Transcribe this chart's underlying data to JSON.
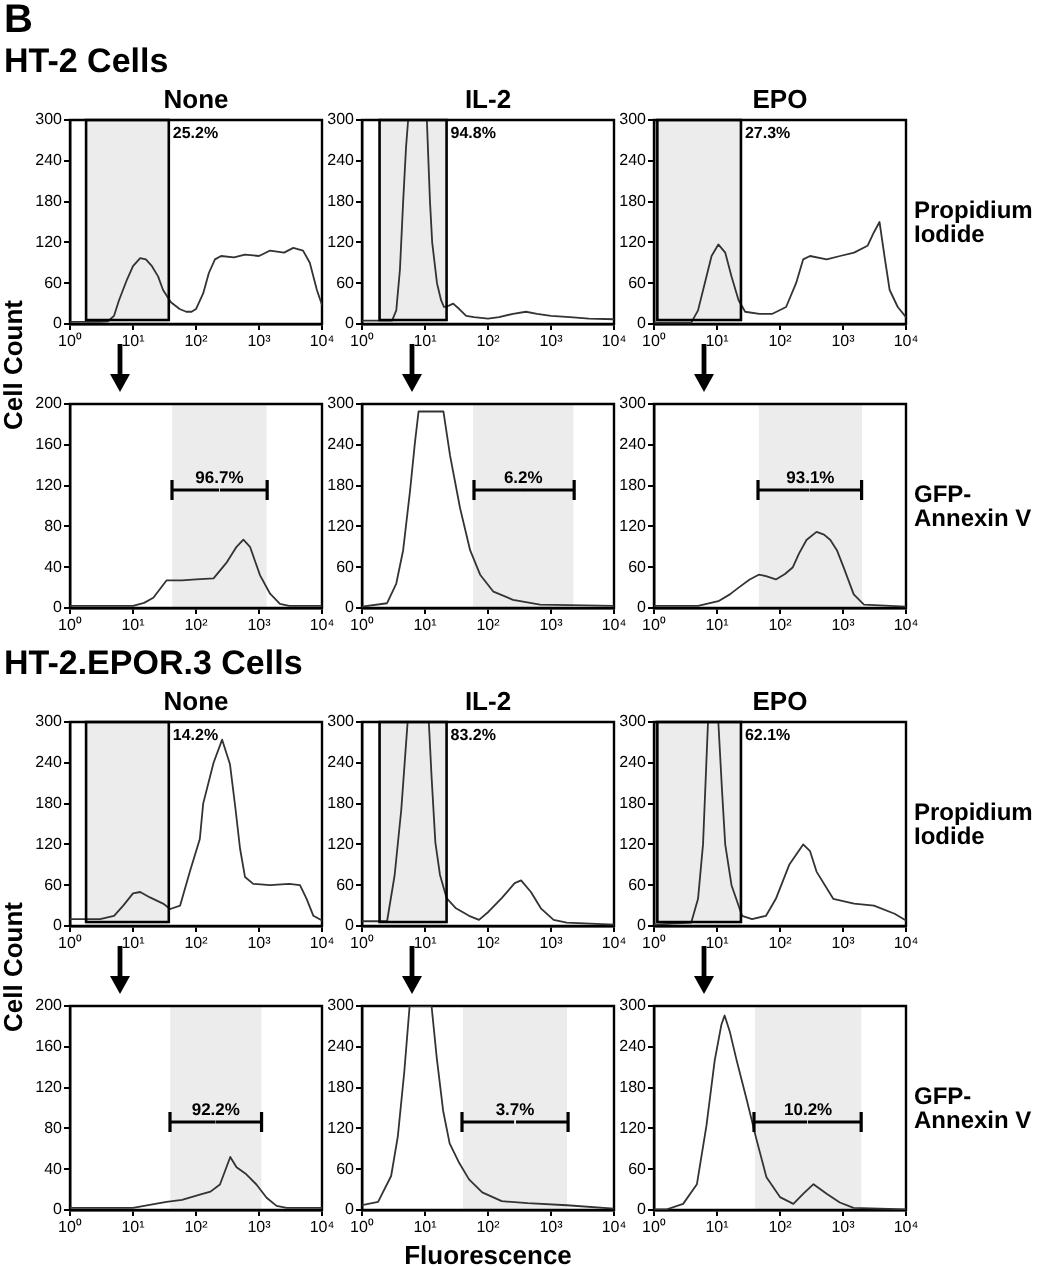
{
  "chart_data": [
    {
      "type": "line",
      "title": "None",
      "annotations": [
        "B",
        "HT-2 Cells"
      ],
      "log": "x",
      "xlim": [
        1,
        10000
      ],
      "xticks": [
        {
          "value": 1,
          "label": "10⁰"
        },
        {
          "value": 10,
          "label": "10¹"
        },
        {
          "value": 100,
          "label": "10²"
        },
        {
          "value": 1000,
          "label": "10³"
        },
        {
          "value": 10000,
          "label": "10⁴"
        }
      ],
      "ylim": [
        0,
        300
      ],
      "yticks": [
        0,
        60,
        120,
        180,
        240,
        300
      ],
      "bands": [
        {
          "axis": "x",
          "from": 1.8,
          "to": 37,
          "label": "25.2%",
          "color": "#ececec"
        }
      ],
      "x": [
        1,
        2,
        3,
        4,
        5,
        6,
        8,
        10,
        13,
        16,
        20,
        25,
        30,
        40,
        55,
        70,
        85,
        100,
        130,
        160,
        200,
        250,
        400,
        600,
        1000,
        1500,
        2500,
        3500,
        5000,
        6400,
        8300,
        10000
      ],
      "series": [
        {
          "color": "#333333",
          "values": [
            3,
            3,
            3,
            4,
            12,
            35,
            65,
            85,
            97,
            95,
            85,
            70,
            50,
            32,
            22,
            18,
            18,
            22,
            45,
            75,
            95,
            100,
            98,
            102,
            100,
            108,
            105,
            112,
            108,
            90,
            50,
            28
          ]
        }
      ]
    },
    {
      "type": "line",
      "title": "IL-2",
      "log": "x",
      "xlim": [
        1,
        10000
      ],
      "xticks": [
        {
          "value": 1,
          "label": "10⁰"
        },
        {
          "value": 10,
          "label": "10¹"
        },
        {
          "value": 100,
          "label": "10²"
        },
        {
          "value": 1000,
          "label": "10³"
        },
        {
          "value": 10000,
          "label": "10⁴"
        }
      ],
      "ylim": [
        0,
        300
      ],
      "yticks": [
        0,
        60,
        120,
        180,
        240,
        300
      ],
      "bands": [
        {
          "axis": "x",
          "from": 1.9,
          "to": 22,
          "label": "94.8%",
          "color": "#ececec"
        }
      ],
      "x": [
        1,
        2,
        3,
        3.5,
        4,
        4.5,
        5,
        5.4,
        7,
        10.7,
        12,
        13,
        15.5,
        18,
        20,
        24,
        28,
        35,
        45,
        60,
        100,
        150,
        250,
        400,
        600,
        1000,
        2000,
        4000,
        10000
      ],
      "series": [
        {
          "color": "#333333",
          "values": [
            5,
            5,
            5,
            20,
            80,
            180,
            260,
            300,
            300,
            300,
            180,
            120,
            60,
            35,
            25,
            27,
            30,
            22,
            12,
            10,
            8,
            10,
            15,
            18,
            15,
            12,
            10,
            8,
            7
          ]
        }
      ]
    },
    {
      "type": "line",
      "title": "EPO",
      "annotations": [
        "Propidium Iodide"
      ],
      "log": "x",
      "xlim": [
        1,
        10000
      ],
      "xticks": [
        {
          "value": 1,
          "label": "10⁰"
        },
        {
          "value": 10,
          "label": "10¹"
        },
        {
          "value": 100,
          "label": "10²"
        },
        {
          "value": 1000,
          "label": "10³"
        },
        {
          "value": 10000,
          "label": "10⁴"
        }
      ],
      "ylim": [
        0,
        300
      ],
      "yticks": [
        0,
        60,
        120,
        180,
        240,
        300
      ],
      "bands": [
        {
          "axis": "x",
          "from": 1.13,
          "to": 24,
          "label": "27.3%",
          "color": "#ececec"
        }
      ],
      "x": [
        1,
        2,
        3.9,
        5,
        6.4,
        8.2,
        10.5,
        13.5,
        17,
        22,
        28,
        47,
        76,
        125,
        180,
        233,
        300,
        550,
        900,
        1500,
        2450,
        3100,
        3800,
        4550,
        5500,
        7400,
        10000
      ],
      "series": [
        {
          "color": "#333333",
          "values": [
            2,
            2,
            2,
            20,
            60,
            100,
            117,
            105,
            70,
            35,
            18,
            15,
            15,
            25,
            60,
            95,
            100,
            95,
            100,
            105,
            115,
            135,
            150,
            100,
            50,
            25,
            10
          ]
        }
      ]
    },
    {
      "type": "line",
      "ylabel": "Cell Count",
      "log": "x",
      "xlim": [
        1,
        10000
      ],
      "xticks": [
        {
          "value": 1,
          "label": "10⁰"
        },
        {
          "value": 10,
          "label": "10¹"
        },
        {
          "value": 100,
          "label": "10²"
        },
        {
          "value": 1000,
          "label": "10³"
        },
        {
          "value": 10000,
          "label": "10⁴"
        }
      ],
      "ylim": [
        0,
        200
      ],
      "yticks": [
        0,
        40,
        80,
        120,
        160,
        200
      ],
      "bands": [
        {
          "axis": "x",
          "from": 42,
          "to": 1320,
          "label": "96.7%",
          "color": "#ececec"
        }
      ],
      "x": [
        1,
        3,
        10,
        15,
        21,
        34,
        60,
        100,
        190,
        310,
        440,
        565,
        720,
        1040,
        1500,
        2150,
        3000,
        10000
      ],
      "series": [
        {
          "color": "#333333",
          "values": [
            2,
            2,
            2,
            5,
            10,
            27,
            27,
            28,
            29,
            45,
            60,
            67,
            60,
            32,
            14,
            4,
            2,
            2
          ]
        }
      ]
    },
    {
      "type": "line",
      "log": "x",
      "xlim": [
        1,
        10000
      ],
      "xticks": [
        {
          "value": 1,
          "label": "10⁰"
        },
        {
          "value": 10,
          "label": "10¹"
        },
        {
          "value": 100,
          "label": "10²"
        },
        {
          "value": 1000,
          "label": "10³"
        },
        {
          "value": 10000,
          "label": "10⁴"
        }
      ],
      "ylim": [
        0,
        300
      ],
      "yticks": [
        0,
        60,
        120,
        180,
        240,
        300
      ],
      "bands": [
        {
          "axis": "x",
          "from": 58,
          "to": 2270,
          "label": "6.2%",
          "color": "#ececec"
        }
      ],
      "x": [
        1,
        2.5,
        3.5,
        4.5,
        5.8,
        6.9,
        7.9,
        19.6,
        25,
        36,
        52,
        75,
        122,
        250,
        670,
        10000
      ],
      "series": [
        {
          "color": "#333333",
          "values": [
            2,
            7,
            36,
            85,
            173,
            242,
            289,
            289,
            224,
            147,
            85,
            49,
            24,
            12,
            5,
            3
          ]
        }
      ]
    },
    {
      "type": "line",
      "annotations": [
        "GFP- Annexin V"
      ],
      "log": "x",
      "xlim": [
        1,
        10000
      ],
      "xticks": [
        {
          "value": 1,
          "label": "10⁰"
        },
        {
          "value": 10,
          "label": "10¹"
        },
        {
          "value": 100,
          "label": "10²"
        },
        {
          "value": 1000,
          "label": "10³"
        },
        {
          "value": 10000,
          "label": "10⁴"
        }
      ],
      "ylim": [
        0,
        300
      ],
      "yticks": [
        0,
        60,
        120,
        180,
        240,
        300
      ],
      "bands": [
        {
          "axis": "x",
          "from": 46,
          "to": 2000,
          "label": "93.1%",
          "color": "#ececec"
        }
      ],
      "x": [
        1,
        5,
        10.5,
        16,
        22,
        33,
        46,
        60,
        86,
        120,
        160,
        200,
        263,
        380,
        500,
        630,
        800,
        1020,
        1480,
        2150,
        10000
      ],
      "series": [
        {
          "color": "#333333",
          "values": [
            3,
            3,
            10,
            20,
            30,
            42,
            49,
            47,
            42,
            50,
            60,
            80,
            100,
            112,
            108,
            100,
            85,
            60,
            20,
            5,
            2
          ]
        }
      ]
    },
    {
      "type": "line",
      "title": "None",
      "annotations": [
        "HT-2.EPOR.3 Cells"
      ],
      "log": "x",
      "xlim": [
        1,
        10000
      ],
      "xticks": [
        {
          "value": 1,
          "label": "10⁰"
        },
        {
          "value": 10,
          "label": "10¹"
        },
        {
          "value": 100,
          "label": "10²"
        },
        {
          "value": 1000,
          "label": "10³"
        },
        {
          "value": 10000,
          "label": "10⁴"
        }
      ],
      "ylim": [
        0,
        300
      ],
      "yticks": [
        0,
        60,
        120,
        180,
        240,
        300
      ],
      "bands": [
        {
          "axis": "x",
          "from": 1.8,
          "to": 37,
          "label": "14.2%",
          "color": "#ececec"
        }
      ],
      "x": [
        1,
        3,
        5,
        7,
        10,
        13,
        18.6,
        30,
        39,
        56,
        80,
        115,
        130,
        190,
        260,
        346,
        420,
        500,
        600,
        810,
        1500,
        3000,
        4470,
        5700,
        7300,
        10000
      ],
      "series": [
        {
          "color": "#333333",
          "values": [
            10,
            10,
            15,
            30,
            48,
            50,
            42,
            33,
            25,
            30,
            80,
            128,
            180,
            240,
            274,
            238,
            175,
            114,
            72,
            62,
            60,
            62,
            60,
            40,
            15,
            8
          ]
        }
      ]
    },
    {
      "type": "line",
      "title": "IL-2",
      "log": "x",
      "xlim": [
        1,
        10000
      ],
      "xticks": [
        {
          "value": 1,
          "label": "10⁰"
        },
        {
          "value": 10,
          "label": "10¹"
        },
        {
          "value": 100,
          "label": "10²"
        },
        {
          "value": 1000,
          "label": "10³"
        },
        {
          "value": 10000,
          "label": "10⁴"
        }
      ],
      "ylim": [
        0,
        300
      ],
      "yticks": [
        0,
        60,
        120,
        180,
        240,
        300
      ],
      "bands": [
        {
          "axis": "x",
          "from": 1.9,
          "to": 22,
          "label": "83.2%",
          "color": "#ececec"
        }
      ],
      "x": [
        1,
        2.5,
        3.3,
        4.2,
        5.3,
        11.5,
        12.7,
        14.6,
        17.3,
        22,
        31,
        50,
        72,
        102,
        165,
        265,
        335,
        480,
        690,
        1100,
        1780,
        10000
      ],
      "series": [
        {
          "color": "#333333",
          "values": [
            7,
            7,
            75,
            171,
            300,
            300,
            220,
            123,
            75,
            41,
            26,
            15,
            9,
            21,
            41,
            63,
            67,
            50,
            26,
            9,
            5,
            2
          ]
        }
      ]
    },
    {
      "type": "line",
      "title": "EPO",
      "annotations": [
        "Propidium Iodide"
      ],
      "log": "x",
      "xlim": [
        1,
        10000
      ],
      "xticks": [
        {
          "value": 1,
          "label": "10⁰"
        },
        {
          "value": 10,
          "label": "10¹"
        },
        {
          "value": 100,
          "label": "10²"
        },
        {
          "value": 1000,
          "label": "10³"
        },
        {
          "value": 10000,
          "label": "10⁴"
        }
      ],
      "ylim": [
        0,
        300
      ],
      "yticks": [
        0,
        60,
        120,
        180,
        240,
        300
      ],
      "bands": [
        {
          "axis": "x",
          "from": 1.13,
          "to": 24,
          "label": "62.1%",
          "color": "#ececec"
        }
      ],
      "x": [
        1,
        3.9,
        5,
        6,
        7.2,
        10.5,
        12,
        13.5,
        17,
        25,
        36,
        60,
        86,
        140,
        233,
        300,
        380,
        700,
        1500,
        3100,
        6600,
        10000
      ],
      "series": [
        {
          "color": "#333333",
          "values": [
            2,
            5,
            40,
            120,
            300,
            300,
            200,
            120,
            60,
            15,
            10,
            15,
            40,
            90,
            120,
            110,
            80,
            40,
            33,
            30,
            18,
            8
          ]
        }
      ]
    },
    {
      "type": "line",
      "ylabel": "Cell Count",
      "log": "x",
      "xlim": [
        1,
        10000
      ],
      "xticks": [
        {
          "value": 1,
          "label": "10⁰"
        },
        {
          "value": 10,
          "label": "10¹"
        },
        {
          "value": 100,
          "label": "10²"
        },
        {
          "value": 1000,
          "label": "10³"
        },
        {
          "value": 10000,
          "label": "10⁴"
        }
      ],
      "ylim": [
        0,
        200
      ],
      "yticks": [
        0,
        40,
        80,
        120,
        160,
        200
      ],
      "bands": [
        {
          "axis": "x",
          "from": 39,
          "to": 1090,
          "label": "92.2%",
          "color": "#ececec"
        }
      ],
      "x": [
        1,
        10,
        34,
        60,
        115,
        170,
        240,
        350,
        440,
        630,
        910,
        1320,
        1900,
        2750,
        10000
      ],
      "series": [
        {
          "color": "#333333",
          "values": [
            2,
            2,
            8,
            10,
            15,
            18,
            25,
            52,
            42,
            35,
            25,
            12,
            4,
            2,
            2
          ]
        }
      ]
    },
    {
      "type": "line",
      "xlabel": "Fluorescence",
      "log": "x",
      "xlim": [
        1,
        10000
      ],
      "xticks": [
        {
          "value": 1,
          "label": "10⁰"
        },
        {
          "value": 10,
          "label": "10¹"
        },
        {
          "value": 100,
          "label": "10²"
        },
        {
          "value": 1000,
          "label": "10³"
        },
        {
          "value": 10000,
          "label": "10⁴"
        }
      ],
      "ylim": [
        0,
        300
      ],
      "yticks": [
        0,
        60,
        120,
        180,
        240,
        300
      ],
      "bands": [
        {
          "axis": "x",
          "from": 40,
          "to": 1800,
          "label": "3.7%",
          "color": "#ececec"
        }
      ],
      "x": [
        1,
        1.8,
        2.9,
        3.7,
        4.7,
        5.7,
        12.7,
        15.4,
        19.4,
        24.6,
        35,
        50,
        81,
        165,
        425,
        1780,
        10000
      ],
      "series": [
        {
          "color": "#333333",
          "values": [
            7,
            12,
            50,
            108,
            204,
            300,
            300,
            223,
            146,
            98,
            69,
            45,
            26,
            13,
            10,
            7,
            2
          ]
        }
      ]
    },
    {
      "type": "line",
      "annotations": [
        "GFP- Annexin V"
      ],
      "log": "x",
      "xlim": [
        1,
        10000
      ],
      "xticks": [
        {
          "value": 1,
          "label": "10⁰"
        },
        {
          "value": 10,
          "label": "10¹"
        },
        {
          "value": 100,
          "label": "10²"
        },
        {
          "value": 1000,
          "label": "10³"
        },
        {
          "value": 10000,
          "label": "10⁴"
        }
      ],
      "ylim": [
        0,
        300
      ],
      "yticks": [
        0,
        60,
        120,
        180,
        240,
        300
      ],
      "bands": [
        {
          "axis": "x",
          "from": 40,
          "to": 1950,
          "label": "10.2%",
          "color": "#ececec"
        }
      ],
      "x": [
        1,
        1.6,
        2.9,
        4.8,
        6.8,
        9.2,
        11.7,
        13.2,
        16,
        20.5,
        29.5,
        42,
        61,
        100,
        163,
        235,
        340,
        550,
        890,
        1470,
        10000
      ],
      "series": [
        {
          "color": "#333333",
          "values": [
            1,
            1,
            9,
            38,
            124,
            220,
            272,
            286,
            262,
            220,
            163,
            105,
            48,
            19,
            9,
            24,
            38,
            24,
            11,
            3,
            1
          ]
        }
      ]
    }
  ]
}
